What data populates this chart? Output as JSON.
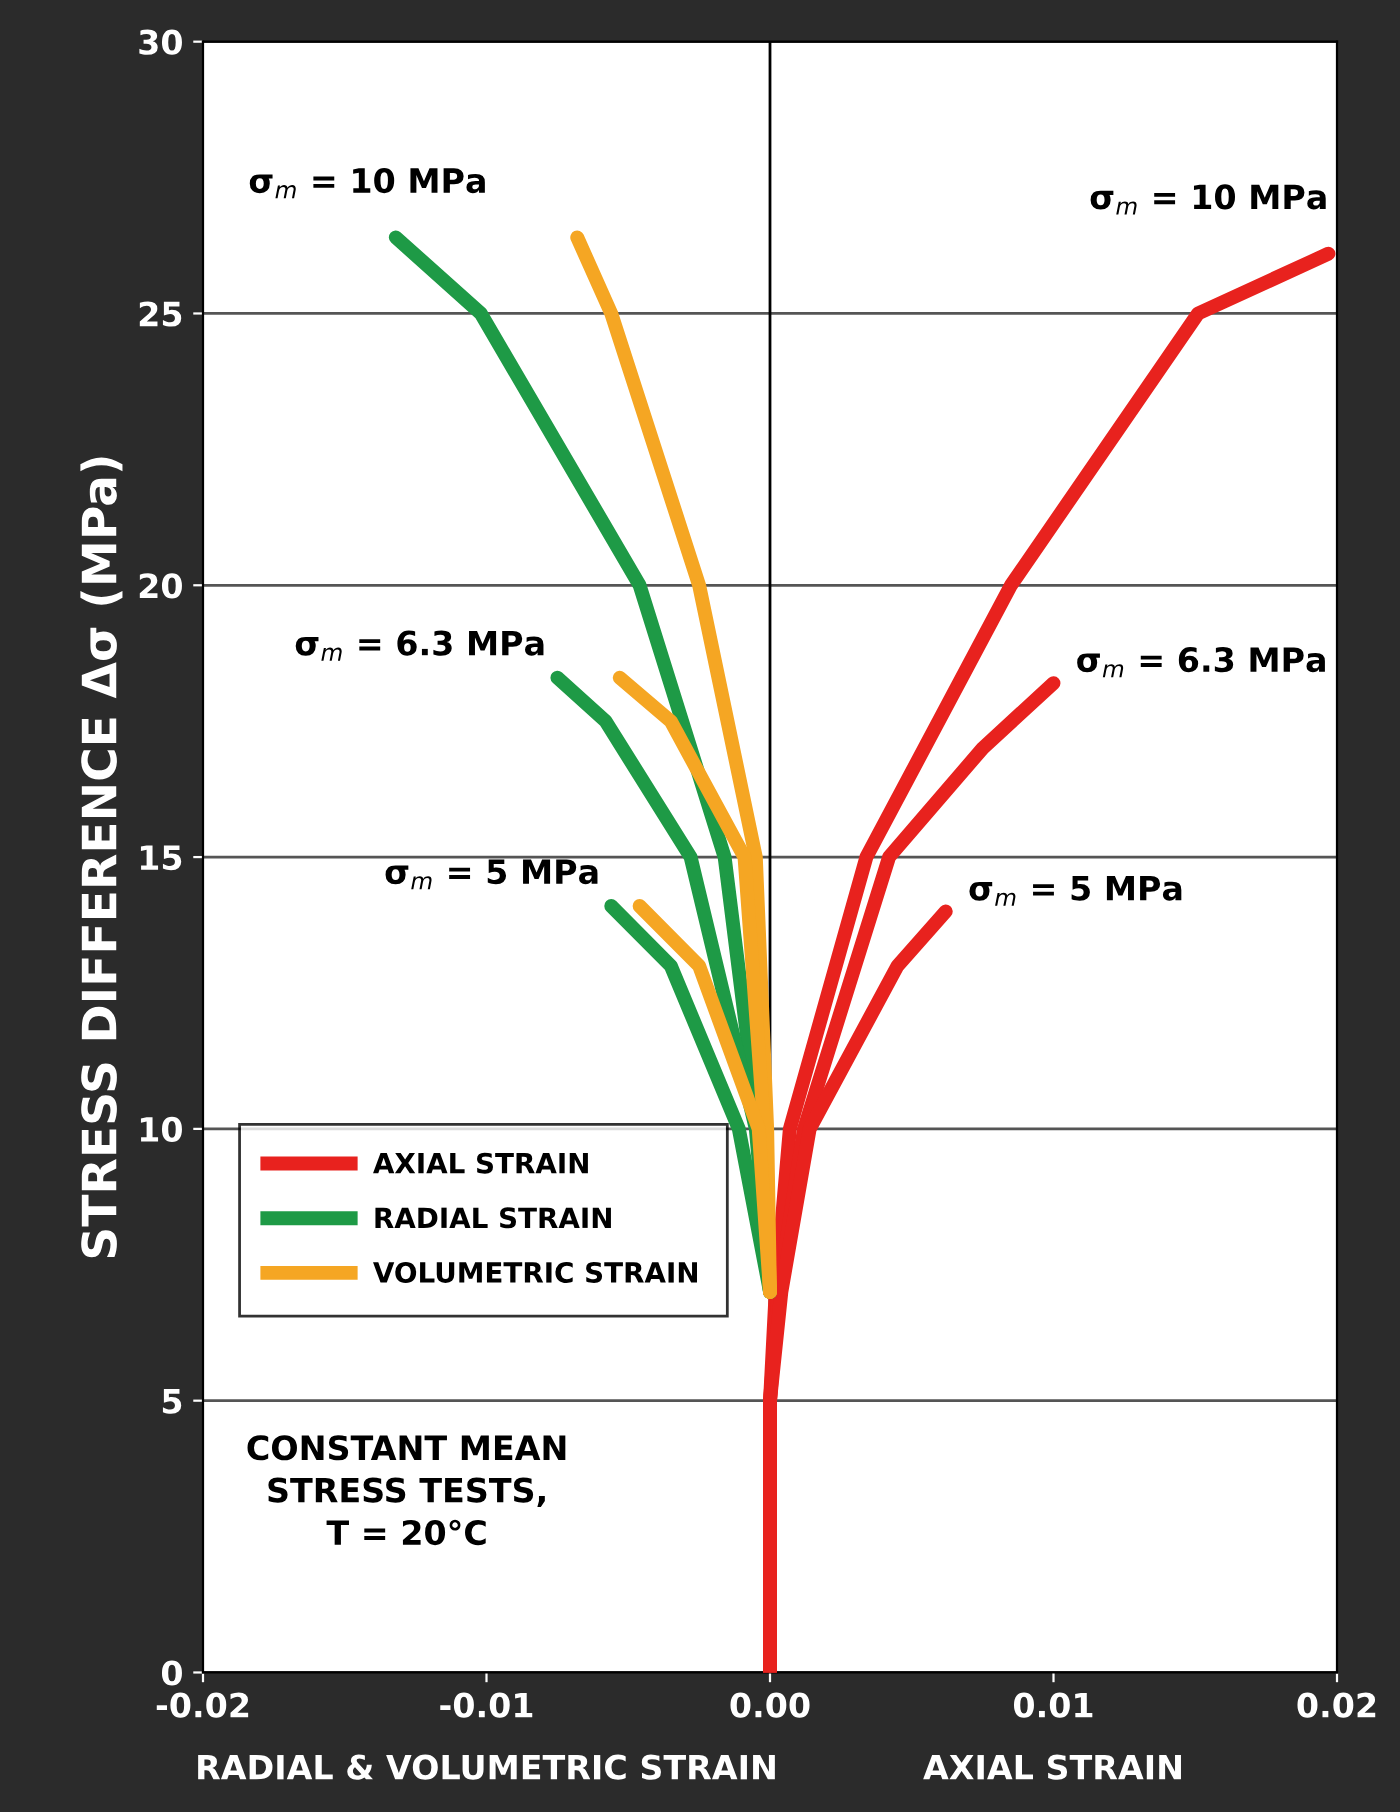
{
  "chart_data": {
    "type": "line",
    "ylabel": "STRESS DIFFERENCE Δσ (MPa)",
    "xlabel": "RADIAL & VOLUMETRIC STRAIN",
    "xlim": [
      -0.02,
      0.02
    ],
    "ylim": [
      0,
      30
    ],
    "xticks": [
      {
        "value": -0.02,
        "label": "-0.02"
      },
      {
        "value": -0.01,
        "label": "-0.01"
      },
      {
        "value": 0,
        "label": "0.00"
      },
      {
        "value": 0.01,
        "label": "0.01"
      },
      {
        "value": 0.02,
        "label": "0.02"
      }
    ],
    "yticks": [
      0,
      5,
      10,
      15,
      20,
      25,
      30
    ],
    "grid": "y",
    "legend": "lower left",
    "marker": "none",
    "line_style": "solid",
    "ref_lines": [
      {
        "axis": "x",
        "value": 0,
        "color": "#000000"
      }
    ],
    "series": [
      {
        "name": "AXIAL STRAIN",
        "color": "#e8221e",
        "x": [
          0,
          0,
          0.0002,
          0.0007,
          0.0034,
          0.0085,
          0.0151,
          0.0197
        ],
        "values": [
          0,
          5,
          7,
          10,
          15,
          20,
          25,
          26.1
        ]
      },
      {
        "color": "#e8221e",
        "x": [
          0,
          0,
          0.0003,
          0.0012,
          0.0042,
          0.0075,
          0.01
        ],
        "values": [
          0,
          5,
          7,
          10,
          15,
          17,
          18.2
        ]
      },
      {
        "color": "#e8221e",
        "x": [
          0,
          0,
          0.0004,
          0.0014,
          0.0045,
          0.0062
        ],
        "values": [
          0,
          5,
          7,
          10,
          13,
          14
        ]
      },
      {
        "name": "RADIAL STRAIN",
        "color": "#1e9a46",
        "x": [
          0,
          -0.0004,
          -0.0016,
          -0.0046,
          -0.0102,
          -0.0132
        ],
        "values": [
          7,
          10,
          15,
          20,
          25,
          26.4
        ]
      },
      {
        "color": "#1e9a46",
        "x": [
          0,
          -0.0005,
          -0.0028,
          -0.0058,
          -0.0075
        ],
        "values": [
          7,
          10,
          15,
          17.5,
          18.3
        ]
      },
      {
        "color": "#1e9a46",
        "x": [
          0,
          -0.0011,
          -0.0035,
          -0.0056
        ],
        "values": [
          7,
          10,
          13,
          14.1
        ]
      },
      {
        "name": "VOLUMETRIC STRAIN",
        "color": "#f5a623",
        "x": [
          0,
          -0.0001,
          -0.0005,
          -0.0025,
          -0.0056,
          -0.0068
        ],
        "values": [
          7,
          10,
          15,
          20,
          25,
          26.4
        ]
      },
      {
        "color": "#f5a623",
        "x": [
          0,
          -0.0002,
          -0.0009,
          -0.0035,
          -0.0053
        ],
        "values": [
          7,
          10,
          15,
          17.5,
          18.3
        ]
      },
      {
        "color": "#f5a623",
        "x": [
          0,
          -0.0004,
          -0.0025,
          -0.0046
        ],
        "values": [
          7,
          10,
          13,
          14.1
        ]
      }
    ],
    "annotations": [
      {
        "text": "σ$_{m}$ = 10 MPa",
        "x": -0.0132,
        "y": 26.4
      },
      {
        "text": "σ$_{m}$ = 6.3 MPa",
        "x": -0.0075,
        "y": 18.3
      },
      {
        "text": "σ$_{m}$ = 5 MPa",
        "x": -0.0056,
        "y": 14.1
      },
      {
        "text": "σ$_{m}$ = 10 MPa",
        "x": 0.0197,
        "y": 26.1
      },
      {
        "text": "σ$_{m}$ = 6.3 MPa",
        "x": 0.01,
        "y": 18.2
      },
      {
        "text": "σ$_{m}$ = 5 MPa",
        "x": 0.0062,
        "y": 14.0
      },
      "AXIAL STRAIN",
      "CONSTANT MEAN\nSTRESS TESTS,\nT = 20°C"
    ]
  }
}
